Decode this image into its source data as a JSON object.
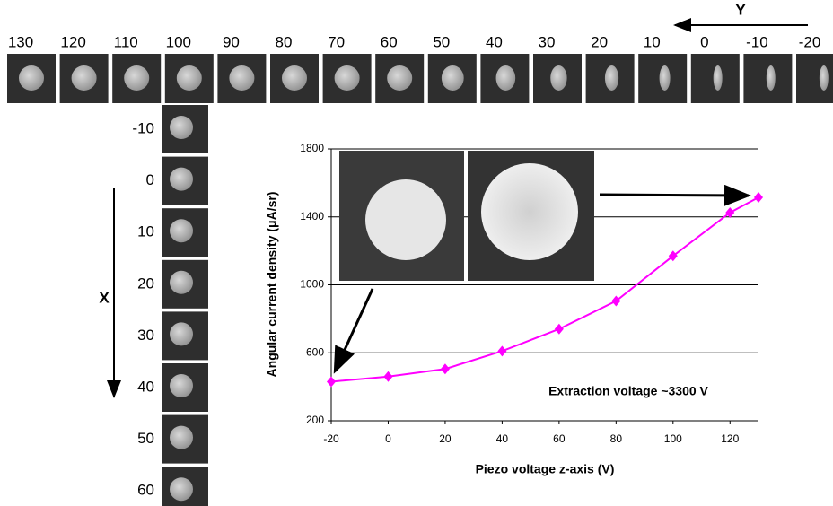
{
  "y_scan": {
    "label": "Y",
    "positions": [
      130,
      120,
      110,
      100,
      90,
      80,
      70,
      60,
      50,
      40,
      30,
      20,
      10,
      0,
      -10,
      -20
    ]
  },
  "x_scan": {
    "label": "X",
    "positions": [
      -10,
      0,
      10,
      20,
      30,
      40,
      50,
      60
    ]
  },
  "chart_data": {
    "type": "line",
    "x": [
      -20,
      0,
      20,
      40,
      60,
      80,
      100,
      120,
      130
    ],
    "values": [
      430,
      460,
      505,
      610,
      740,
      905,
      1170,
      1425,
      1515
    ],
    "color": "#ff00ff",
    "xlabel": "Piezo voltage z-axis (V)",
    "ylabel": "Angular current density (μA/sr)",
    "annotation": "Extraction voltage ~3300 V",
    "xlim": [
      -20,
      130
    ],
    "xticks": [
      -20,
      0,
      20,
      40,
      60,
      80,
      100,
      120
    ],
    "ylim": [
      200,
      1800
    ],
    "yticks": [
      200,
      600,
      1000,
      1400,
      1800
    ],
    "grid": true
  }
}
